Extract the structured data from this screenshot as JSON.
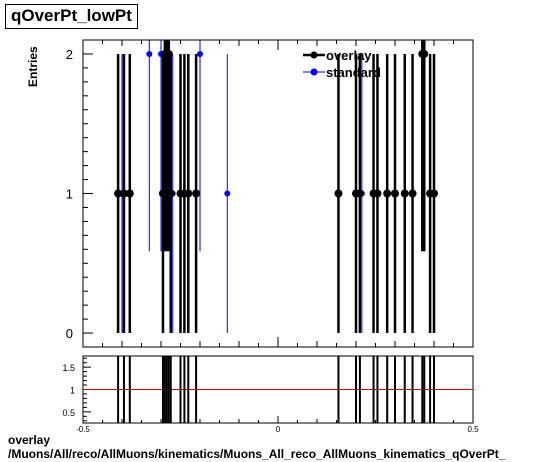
{
  "title": "qOverPt_lowPt",
  "footer": {
    "line1": "overlay",
    "line2": "/Muons/All/reco/AllMuons/kinematics/Muons_All_reco_AllMuons_kinematics_qOverPt_"
  },
  "colors": {
    "overlay": "#000000",
    "standard": "#0000ff",
    "ratio_line": "#cc0000"
  },
  "chart_data": [
    {
      "type": "scatter",
      "ylabel": "Entries",
      "xlim": [
        -0.5,
        0.5
      ],
      "ylim": [
        -0.1,
        2.1
      ],
      "yticks": [
        0,
        1,
        2
      ],
      "grid": false,
      "legend_position": "top-right",
      "series": [
        {
          "name": "overlay",
          "points": [
            [
              -0.41,
              1
            ],
            [
              -0.395,
              1
            ],
            [
              -0.38,
              1
            ],
            [
              -0.295,
              1
            ],
            [
              -0.29,
              2
            ],
            [
              -0.285,
              2
            ],
            [
              -0.28,
              2
            ],
            [
              -0.275,
              1
            ],
            [
              -0.25,
              1
            ],
            [
              -0.24,
              1
            ],
            [
              -0.23,
              1
            ],
            [
              -0.21,
              1
            ],
            [
              0.155,
              1
            ],
            [
              0.2,
              1
            ],
            [
              0.21,
              1
            ],
            [
              0.245,
              1
            ],
            [
              0.255,
              1
            ],
            [
              0.28,
              1
            ],
            [
              0.3,
              1
            ],
            [
              0.325,
              1
            ],
            [
              0.345,
              1
            ],
            [
              0.37,
              2
            ],
            [
              0.375,
              2
            ],
            [
              0.39,
              1
            ],
            [
              0.4,
              1
            ]
          ]
        },
        {
          "name": "standard",
          "points": [
            [
              -0.4,
              1
            ],
            [
              -0.33,
              2
            ],
            [
              -0.3,
              2
            ],
            [
              -0.29,
              2
            ],
            [
              -0.27,
              1
            ],
            [
              -0.2,
              2
            ],
            [
              -0.13,
              1
            ],
            [
              0.2,
              1
            ],
            [
              0.215,
              1
            ],
            [
              0.37,
              2
            ]
          ]
        }
      ]
    },
    {
      "type": "scatter",
      "xlim": [
        -0.5,
        0.5
      ],
      "ylim": [
        0.25,
        1.75
      ],
      "yticks": [
        0.5,
        1,
        1.5
      ],
      "xticks": [
        -0.5,
        0,
        0.5
      ],
      "reference_line": 1
    }
  ]
}
